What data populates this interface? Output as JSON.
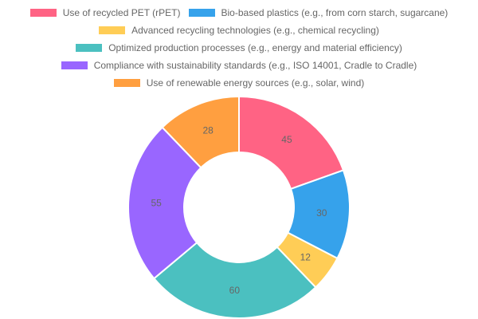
{
  "chart_data": {
    "type": "pie",
    "subtype": "doughnut",
    "title": "",
    "categories": [
      "Use of recycled PET (rPET)",
      "Bio-based plastics (e.g., from corn starch, sugarcane)",
      "Advanced recycling technologies (e.g., chemical recycling)",
      "Optimized production processes (e.g., energy and material efficiency)",
      "Compliance with sustainability standards (e.g., ISO 14001, Cradle to Cradle)",
      "Use of renewable energy sources (e.g., solar, wind)"
    ],
    "values": [
      45,
      30,
      12,
      60,
      55,
      28
    ],
    "colors": [
      "#ff6384",
      "#36a2eb",
      "#ffcd56",
      "#4bc0c0",
      "#9966ff",
      "#ff9f40"
    ],
    "legend_position": "top",
    "data_labels": true
  },
  "legend": {
    "rows": [
      [
        0,
        1
      ],
      [
        2
      ],
      [
        3
      ],
      [
        4
      ],
      [
        5
      ]
    ]
  }
}
